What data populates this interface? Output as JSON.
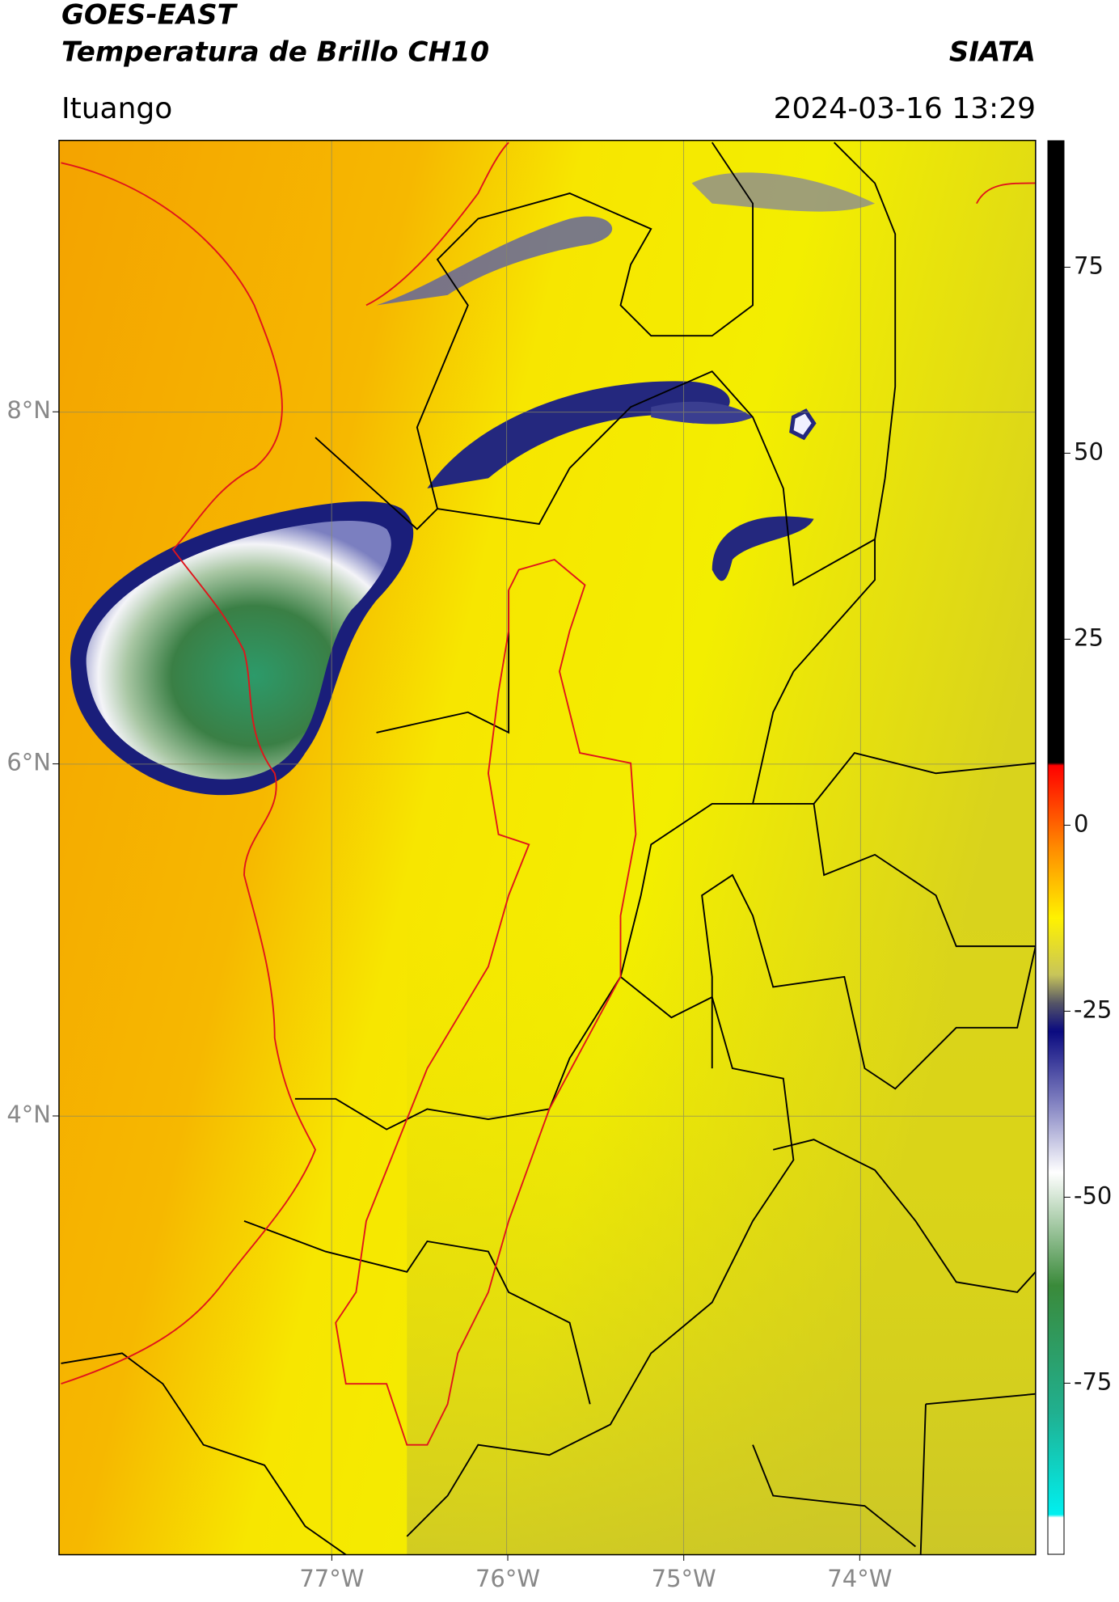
{
  "header": {
    "title": "GOES-EAST",
    "subtitle": "Temperatura de Brillo CH10",
    "source": "SIATA",
    "location": "Ituango",
    "datetime": "2024-03-16 13:29"
  },
  "map": {
    "lonlim": [
      -78.55,
      -73.0
    ],
    "latlim": [
      1.51,
      9.54
    ],
    "lat_ticks": [
      {
        "value": 8,
        "label": "8°N"
      },
      {
        "value": 6,
        "label": "6°N"
      },
      {
        "value": 4,
        "label": "4°N"
      }
    ],
    "lon_ticks": [
      {
        "value": -77,
        "label": "77°W"
      },
      {
        "value": -76,
        "label": "76°W"
      },
      {
        "value": -75,
        "label": "75°W"
      },
      {
        "value": -74,
        "label": "74°W"
      }
    ]
  },
  "colorbar": {
    "lim": [
      -98,
      92
    ],
    "ticks": [
      75,
      50,
      25,
      0,
      -25,
      -50,
      -75
    ]
  }
}
